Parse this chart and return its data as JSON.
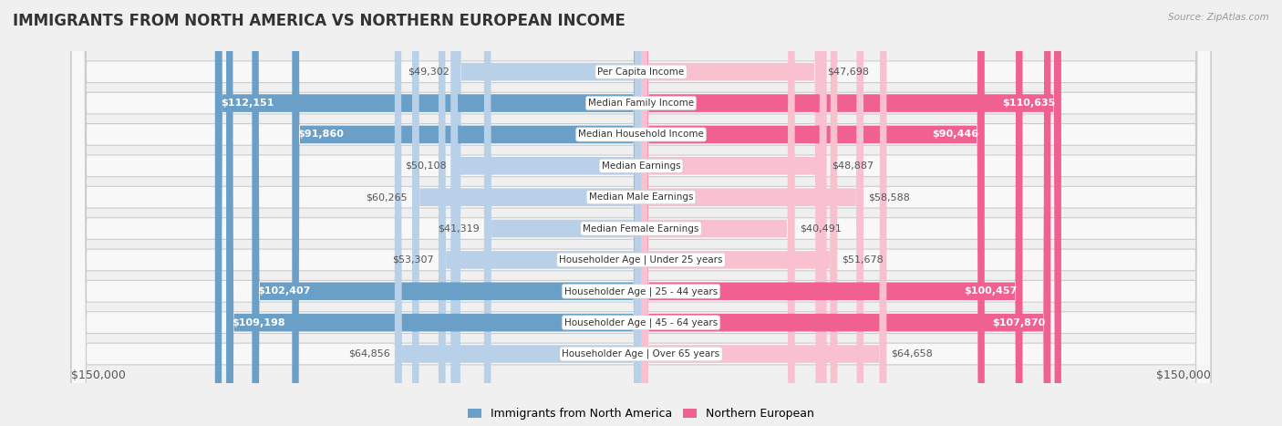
{
  "title": "IMMIGRANTS FROM NORTH AMERICA VS NORTHERN EUROPEAN INCOME",
  "source": "Source: ZipAtlas.com",
  "categories": [
    "Per Capita Income",
    "Median Family Income",
    "Median Household Income",
    "Median Earnings",
    "Median Male Earnings",
    "Median Female Earnings",
    "Householder Age | Under 25 years",
    "Householder Age | 25 - 44 years",
    "Householder Age | 45 - 64 years",
    "Householder Age | Over 65 years"
  ],
  "left_values": [
    49302,
    112151,
    91860,
    50108,
    60265,
    41319,
    53307,
    102407,
    109198,
    64856
  ],
  "right_values": [
    47698,
    110635,
    90446,
    48887,
    58588,
    40491,
    51678,
    100457,
    107870,
    64658
  ],
  "left_labels": [
    "$49,302",
    "$112,151",
    "$91,860",
    "$50,108",
    "$60,265",
    "$41,319",
    "$53,307",
    "$102,407",
    "$109,198",
    "$64,856"
  ],
  "right_labels": [
    "$47,698",
    "$110,635",
    "$90,446",
    "$48,887",
    "$58,588",
    "$40,491",
    "$51,678",
    "$100,457",
    "$107,870",
    "$64,658"
  ],
  "max_value": 150000,
  "left_color_light": "#b8d0e8",
  "left_color_dark": "#6a9fc8",
  "right_color_light": "#f9c0d0",
  "right_color_dark": "#f06090",
  "label_white_threshold": 80000,
  "background_color": "#f0f0f0",
  "row_bg_color": "#f8f8f8",
  "row_border_color": "#cccccc",
  "legend_left": "Immigrants from North America",
  "legend_right": "Northern European",
  "xlabel_left": "$150,000",
  "xlabel_right": "$150,000",
  "title_fontsize": 12,
  "label_fontsize": 8,
  "cat_fontsize": 7.5
}
